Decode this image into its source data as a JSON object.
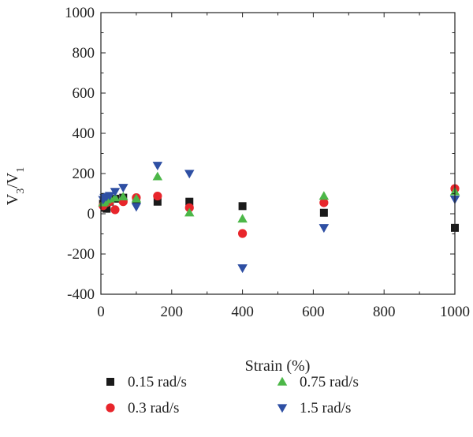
{
  "chart_data": {
    "type": "scatter",
    "title": "",
    "xlabel": "Strain (%)",
    "ylabel": {
      "main": "V",
      "sub1": "3",
      "sep": "/V",
      "sub2": "1"
    },
    "xlim": [
      0,
      1000
    ],
    "ylim": [
      -400,
      1000
    ],
    "xticks": [
      0,
      200,
      400,
      600,
      800,
      1000
    ],
    "yticks": [
      -400,
      -200,
      0,
      200,
      400,
      600,
      800,
      1000
    ],
    "grid": false,
    "legend_position": "bottom",
    "series": [
      {
        "name": "0.15 rad/s",
        "marker": "square",
        "color": "#1a1a1a",
        "points": [
          [
            6,
            50
          ],
          [
            10,
            30
          ],
          [
            16,
            25
          ],
          [
            25,
            60
          ],
          [
            40,
            75
          ],
          [
            63,
            80
          ],
          [
            100,
            70
          ],
          [
            160,
            60
          ],
          [
            250,
            60
          ],
          [
            400,
            38
          ],
          [
            630,
            5
          ],
          [
            1000,
            -70
          ]
        ]
      },
      {
        "name": "0.3 rad/s",
        "marker": "circle",
        "color": "#e8252b",
        "points": [
          [
            6,
            40
          ],
          [
            10,
            50
          ],
          [
            16,
            55
          ],
          [
            25,
            60
          ],
          [
            40,
            20
          ],
          [
            63,
            60
          ],
          [
            100,
            80
          ],
          [
            160,
            88
          ],
          [
            250,
            30
          ],
          [
            400,
            -98
          ],
          [
            630,
            55
          ],
          [
            1000,
            125
          ]
        ]
      },
      {
        "name": "0.75 rad/s",
        "marker": "triangle-up",
        "color": "#4cb748",
        "points": [
          [
            6,
            55
          ],
          [
            10,
            60
          ],
          [
            16,
            70
          ],
          [
            25,
            75
          ],
          [
            40,
            80
          ],
          [
            63,
            85
          ],
          [
            100,
            75
          ],
          [
            160,
            185
          ],
          [
            250,
            5
          ],
          [
            400,
            -25
          ],
          [
            630,
            88
          ],
          [
            1000,
            110
          ]
        ]
      },
      {
        "name": "1.5 rad/s",
        "marker": "triangle-down",
        "color": "#2e4fa3",
        "points": [
          [
            6,
            70
          ],
          [
            10,
            80
          ],
          [
            16,
            85
          ],
          [
            25,
            90
          ],
          [
            40,
            110
          ],
          [
            63,
            130
          ],
          [
            100,
            35
          ],
          [
            160,
            240
          ],
          [
            250,
            200
          ],
          [
            400,
            -270
          ],
          [
            630,
            -70
          ],
          [
            1000,
            72
          ]
        ]
      }
    ]
  }
}
